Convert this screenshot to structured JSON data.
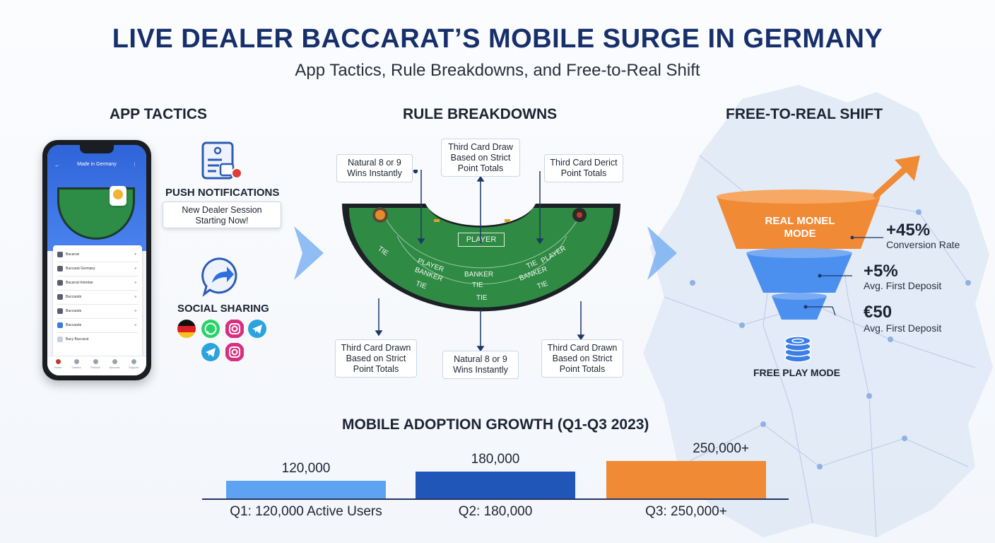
{
  "title": "LIVE DEALER BACCARAT’S MOBILE SURGE IN GERMANY",
  "subtitle": "App Tactics, Rule Breakdowns, and Free-to-Real Shift",
  "sections": {
    "app_tactics": "APP TACTICS",
    "rule_breakdowns": "RULE BREAKDOWNS",
    "free_to_real": "FREE-TO-REAL SHIFT"
  },
  "phone": {
    "header_title": "Made in Germany",
    "rows": [
      {
        "label": "Bacarrat",
        "chevron": "×"
      },
      {
        "label": "Baccarat Germany",
        "chevron": "»"
      },
      {
        "label": "Bacarrat Interdae",
        "chevron": "»"
      },
      {
        "label": "Baccarats",
        "chevron": "»"
      },
      {
        "label": "Baccarats",
        "chevron": "»"
      },
      {
        "label": "Baccarats",
        "chevron": "»"
      },
      {
        "label": "Bacy Baccarat",
        "chevron": ""
      }
    ],
    "tabs": [
      "Home",
      "Games",
      "Promos",
      "Account",
      "Support"
    ]
  },
  "push": {
    "heading": "PUSH NOTIFICATIONS",
    "message_line1": "New Dealer Session",
    "message_line2": "Starting Now!"
  },
  "social": {
    "heading": "SOCIAL SHARING",
    "icons": [
      "german-flag-icon",
      "whatsapp-icon",
      "instagram-icon",
      "telegram-icon",
      "telegram-icon",
      "instagram-icon"
    ],
    "colors": {
      "whatsapp": "#25d366",
      "telegram": "#2aa3df",
      "instagram": "#d6307e"
    }
  },
  "rules": {
    "top_left": {
      "l1": "Natural 8 or 9",
      "l2": "Wins Instantly"
    },
    "top_center": {
      "l1": "Third Card Draw",
      "l2": "Based on Strict",
      "l3": "Point Totals"
    },
    "top_right": {
      "l1": "Third Card Derict",
      "l2": "Point Totals"
    },
    "bottom_left": {
      "l1": "Third Card Drawn",
      "l2": "Based on Strict",
      "l3": "Point Totals"
    },
    "bottom_center": {
      "l1": "Natural 8 or 9",
      "l2": "Wins Instantly"
    },
    "bottom_right": {
      "l1": "Third Card Drawn",
      "l2": "Based on Strict",
      "l3": "Point Totals"
    }
  },
  "table_labels": {
    "player": "PLAYER",
    "player_left": "PLAYER",
    "banker": "BANKER",
    "banker_left": "BANKER",
    "banker_right": "BANKER",
    "tie": "TIE",
    "player_right": "PLAYER"
  },
  "funnel": {
    "top_label_l1": "REAL MONEL",
    "top_label_l2": "MODE",
    "bottom_label": "FREE PLAY MODE",
    "colors": {
      "orange": "#f08a35",
      "blue": "#4b90ee"
    },
    "stats": [
      {
        "value": "+45%",
        "label": "Conversion Rate"
      },
      {
        "value": "+5%",
        "label": "Avg. First Deposit"
      },
      {
        "value": "€50",
        "label": "Avg. First Deposit"
      }
    ]
  },
  "adoption": {
    "heading": "MOBILE ADOPTION GROWTH (Q1-Q3 2023)",
    "bars": [
      {
        "value_label": "120,000",
        "axis_label": "Q1: 120,000 Active Users",
        "value": 120000,
        "color": "#5ea2f2"
      },
      {
        "value_label": "180,000",
        "axis_label": "Q2: 180,000",
        "value": 180000,
        "color": "#1f56b8"
      },
      {
        "value_label": "250,000+",
        "axis_label": "Q3: 250,000+",
        "value": 250000,
        "color": "#f08a35"
      }
    ]
  }
}
